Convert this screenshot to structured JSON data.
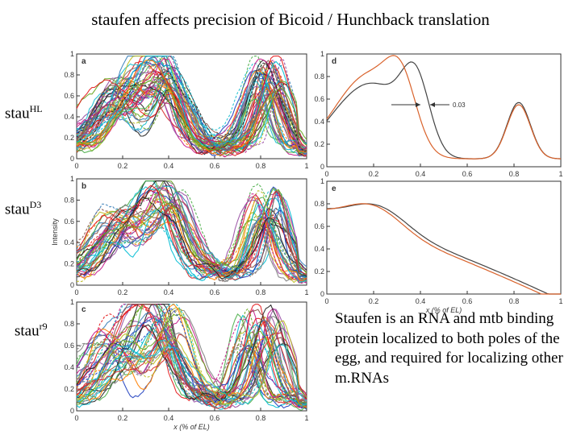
{
  "slide": {
    "title": "staufen affects precision of Bicoid / Hunchback translation",
    "row_labels": [
      {
        "base": "stau",
        "sup": "HL"
      },
      {
        "base": "stau",
        "sup": "D3"
      },
      {
        "base": "stau",
        "sup": "r9"
      }
    ],
    "description": "Staufen is an RNA and mtb binding protein localized to both poles of the egg, and required for localizing other m.RNAs"
  },
  "panels": {
    "a": {
      "letter": "a"
    },
    "b": {
      "letter": "b",
      "ylabel": "Intensity"
    },
    "c": {
      "letter": "c",
      "xlabel": "x (% of EL)"
    },
    "d": {
      "letter": "d",
      "annotation": "0.03"
    },
    "e": {
      "letter": "e",
      "xlabel": "x (% of EL)"
    }
  },
  "axes": {
    "left_x_ticks": [
      "0",
      "0.2",
      "0.4",
      "0.6",
      "0.8",
      "1"
    ],
    "left_y_ticks": [
      "0",
      "0.2",
      "0.4",
      "0.6",
      "0.8",
      "1"
    ],
    "right_x_ticks": [
      "0",
      "0.2",
      "0.4",
      "0.6",
      "0.8",
      "1"
    ],
    "right_y_ticks": [
      "0",
      "0.2",
      "0.4",
      "0.6",
      "0.8",
      "1"
    ]
  },
  "colors": {
    "series_palette": [
      "#e41a1c",
      "#377eb8",
      "#4daf4a",
      "#984ea3",
      "#ff7f00",
      "#00bcd4",
      "#c51b8a",
      "#222222",
      "#8c564b",
      "#66a61e",
      "#1f3fbf",
      "#d62728",
      "#17becf",
      "#bcbd22",
      "#7f7f7f"
    ],
    "orange_curve": "#d9622b",
    "dark_curve": "#444444"
  }
}
